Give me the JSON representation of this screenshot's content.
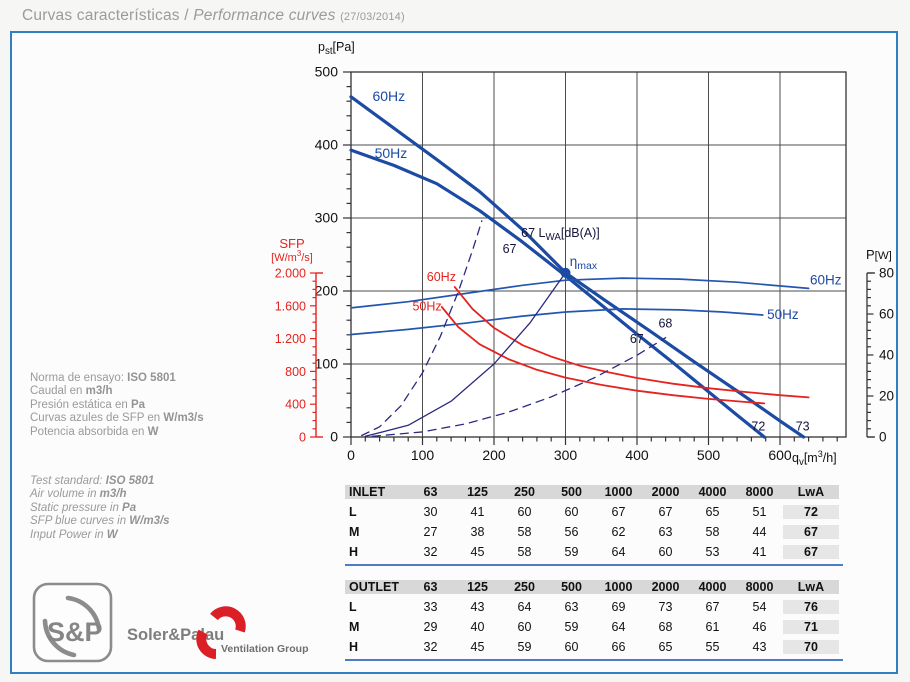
{
  "page": {
    "title_es": "Curvas características /",
    "title_en": "Performance curves",
    "title_date": "(27/03/2014)"
  },
  "info": {
    "spanish": [
      {
        "pre": "Norma de ensayo: ",
        "bold": "ISO 5801"
      },
      {
        "pre": "Caudal en ",
        "bold": "m3/h"
      },
      {
        "pre": "Presión estática en ",
        "bold": "Pa"
      },
      {
        "pre": "Curvas azules de SFP en ",
        "bold": "W/m3/s"
      },
      {
        "pre": "Potencia absorbida en ",
        "bold": "W"
      }
    ],
    "english": [
      {
        "pre": "Test standard: ",
        "bold": "ISO 5801"
      },
      {
        "pre": "Air volume in ",
        "bold": "m3/h"
      },
      {
        "pre": "Static pressure in ",
        "bold": "Pa"
      },
      {
        "pre": "SFP blue curves in ",
        "bold": "W/m3/s"
      },
      {
        "pre": "Input Power in ",
        "bold": "W"
      }
    ]
  },
  "chart_data": {
    "type": "line",
    "title": "Performance curves",
    "grid": true,
    "x_axis": {
      "label": "qv[m³/h]",
      "ticks": [
        "0",
        "100",
        "200",
        "300",
        "400",
        "500",
        "600"
      ],
      "tick_values": [
        0,
        100,
        200,
        300,
        400,
        500,
        600
      ],
      "minor_step": 20,
      "range": [
        0,
        692
      ]
    },
    "y_axis_left": {
      "label": "pst[Pa]",
      "ticks": [
        "500",
        "400",
        "300",
        "200",
        "100",
        "0"
      ],
      "tick_values": [
        500,
        400,
        300,
        200,
        100,
        0
      ],
      "minor_step": 20,
      "range": [
        0,
        500
      ]
    },
    "y_axis_right": {
      "label": "P[W]",
      "ticks": [
        "80",
        "60",
        "40",
        "20",
        "0"
      ],
      "tick_values": [
        80,
        60,
        40,
        20,
        0
      ],
      "minor_step": 4,
      "range": [
        0,
        80
      ]
    },
    "y_axis_sfp": {
      "label": "SFP [W/m³/s]",
      "ticks": [
        "2.000",
        "1.600",
        "1.200",
        "800",
        "400",
        "0"
      ],
      "tick_values": [
        2000,
        1600,
        1200,
        800,
        400,
        0
      ],
      "minor_step": 100,
      "range": [
        0,
        2000
      ]
    },
    "series": [
      {
        "name": "pressure-60Hz",
        "axis": "pa",
        "color": "#1c4ba3",
        "width": 3.2,
        "dash": null,
        "points": [
          [
            0,
            466
          ],
          [
            60,
            423
          ],
          [
            120,
            380
          ],
          [
            180,
            336
          ],
          [
            240,
            284
          ],
          [
            300,
            225
          ],
          [
            360,
            184
          ],
          [
            420,
            144
          ],
          [
            480,
            103
          ],
          [
            540,
            63
          ],
          [
            600,
            22
          ],
          [
            633,
            0
          ]
        ]
      },
      {
        "name": "pressure-50Hz",
        "axis": "pa",
        "color": "#1c4ba3",
        "width": 3.2,
        "dash": null,
        "points": [
          [
            0,
            393
          ],
          [
            60,
            372
          ],
          [
            120,
            347
          ],
          [
            180,
            310
          ],
          [
            240,
            267
          ],
          [
            300,
            221
          ],
          [
            350,
            181
          ],
          [
            400,
            141
          ],
          [
            450,
            102
          ],
          [
            500,
            62
          ],
          [
            540,
            30
          ],
          [
            578,
            0
          ]
        ]
      },
      {
        "name": "power-60Hz",
        "axis": "w",
        "color": "#2456b0",
        "width": 1.7,
        "dash": null,
        "points": [
          [
            0,
            63
          ],
          [
            80,
            66
          ],
          [
            160,
            70
          ],
          [
            240,
            74
          ],
          [
            300,
            76.5
          ],
          [
            380,
            77.5
          ],
          [
            460,
            77
          ],
          [
            540,
            75.5
          ],
          [
            640,
            72.5
          ]
        ]
      },
      {
        "name": "power-50Hz",
        "axis": "w",
        "color": "#2456b0",
        "width": 1.7,
        "dash": null,
        "points": [
          [
            0,
            50
          ],
          [
            80,
            52.5
          ],
          [
            160,
            55.5
          ],
          [
            240,
            59
          ],
          [
            300,
            61
          ],
          [
            380,
            62.5
          ],
          [
            460,
            62
          ],
          [
            520,
            61
          ],
          [
            576,
            59.5
          ]
        ]
      },
      {
        "name": "sfp-60Hz",
        "axis": "sfp",
        "color": "#e5231f",
        "width": 1.8,
        "dash": null,
        "points": [
          [
            145,
            1830
          ],
          [
            170,
            1560
          ],
          [
            200,
            1330
          ],
          [
            240,
            1120
          ],
          [
            280,
            980
          ],
          [
            320,
            870
          ],
          [
            360,
            790
          ],
          [
            400,
            720
          ],
          [
            450,
            650
          ],
          [
            500,
            595
          ],
          [
            550,
            550
          ],
          [
            600,
            510
          ],
          [
            640,
            483
          ]
        ]
      },
      {
        "name": "sfp-50Hz",
        "axis": "sfp",
        "color": "#e5231f",
        "width": 1.8,
        "dash": null,
        "points": [
          [
            127,
            1585
          ],
          [
            150,
            1340
          ],
          [
            180,
            1130
          ],
          [
            220,
            950
          ],
          [
            260,
            820
          ],
          [
            300,
            725
          ],
          [
            350,
            635
          ],
          [
            400,
            565
          ],
          [
            450,
            510
          ],
          [
            500,
            465
          ],
          [
            550,
            428
          ],
          [
            578,
            410
          ]
        ]
      },
      {
        "name": "working-range-min",
        "axis": "pa",
        "color": "#2b2b80",
        "width": 1.3,
        "dash": "8,6",
        "points": [
          [
            15,
            2
          ],
          [
            40,
            14
          ],
          [
            70,
            43
          ],
          [
            100,
            88
          ],
          [
            125,
            138
          ],
          [
            150,
            199
          ],
          [
            170,
            256
          ],
          [
            183,
            296
          ]
        ]
      },
      {
        "name": "working-range-max",
        "axis": "pa",
        "color": "#2b2b80",
        "width": 1.3,
        "dash": "8,6",
        "points": [
          [
            30,
            1
          ],
          [
            100,
            7
          ],
          [
            160,
            18
          ],
          [
            220,
            34
          ],
          [
            280,
            55
          ],
          [
            340,
            81
          ],
          [
            400,
            112
          ],
          [
            440,
            136
          ]
        ]
      },
      {
        "name": "efficiency-curve",
        "axis": "pa",
        "color": "#2b2b80",
        "width": 1.3,
        "dash": null,
        "points": [
          [
            20,
            1
          ],
          [
            80,
            16
          ],
          [
            140,
            49
          ],
          [
            200,
            100
          ],
          [
            250,
            156
          ],
          [
            300,
            225
          ]
        ]
      }
    ],
    "marker": {
      "name": "eta-max-point",
      "axis": "pa",
      "x": 300,
      "y": 225,
      "color": "#1c4ba3"
    },
    "annotations": [
      {
        "name": "label-60hz-pressure",
        "axis": "pa",
        "x": 30,
        "y": 460,
        "color": "#1c4ba3",
        "size": 14,
        "parts": [
          {
            "t": "60Hz"
          }
        ]
      },
      {
        "name": "label-50hz-pressure",
        "axis": "pa",
        "x": 33,
        "y": 382,
        "color": "#1c4ba3",
        "size": 14,
        "parts": [
          {
            "t": "50Hz"
          }
        ]
      },
      {
        "name": "label-lwa-title",
        "axis": "pa",
        "x": 238,
        "y": 274,
        "color": "#14143c",
        "size": 12.5,
        "parts": [
          {
            "t": "67 L"
          },
          {
            "t": "WA",
            "sub": true
          },
          {
            "t": "[dB(A)]"
          }
        ]
      },
      {
        "name": "label-lwa-67a",
        "axis": "pa",
        "x": 212,
        "y": 252,
        "color": "#14143c",
        "size": 12.5,
        "parts": [
          {
            "t": "67"
          }
        ]
      },
      {
        "name": "label-eta-max",
        "axis": "pa",
        "x": 306,
        "y": 234,
        "color": "#1c4ba3",
        "size": 13.5,
        "parts": [
          {
            "t": "η"
          },
          {
            "t": "max",
            "sub": true
          }
        ]
      },
      {
        "name": "label-lwa-68",
        "axis": "pa",
        "x": 430,
        "y": 150,
        "color": "#14143c",
        "size": 12.5,
        "parts": [
          {
            "t": "68"
          }
        ]
      },
      {
        "name": "label-lwa-67b",
        "axis": "pa",
        "x": 390,
        "y": 129,
        "color": "#14143c",
        "size": 12.5,
        "parts": [
          {
            "t": "67"
          }
        ]
      },
      {
        "name": "label-lwa-72",
        "axis": "pa",
        "x": 560,
        "y": 9,
        "color": "#14143c",
        "size": 12.5,
        "parts": [
          {
            "t": "72"
          }
        ]
      },
      {
        "name": "label-lwa-73",
        "axis": "pa",
        "x": 622,
        "y": 9,
        "color": "#14143c",
        "size": 12.5,
        "parts": [
          {
            "t": "73"
          }
        ]
      },
      {
        "name": "label-60hz-power",
        "axis": "w",
        "x": 642,
        "y": 74.5,
        "color": "#1c4ba3",
        "size": 13.5,
        "parts": [
          {
            "t": "60Hz"
          }
        ]
      },
      {
        "name": "label-50hz-power",
        "axis": "w",
        "x": 582,
        "y": 57.5,
        "color": "#1c4ba3",
        "size": 13.5,
        "parts": [
          {
            "t": "50Hz"
          }
        ]
      },
      {
        "name": "label-60hz-sfp",
        "axis": "sfp",
        "x": 106,
        "y": 1900,
        "color": "#e5231f",
        "size": 12.5,
        "parts": [
          {
            "t": "60Hz"
          }
        ]
      },
      {
        "name": "label-50hz-sfp",
        "axis": "sfp",
        "x": 86,
        "y": 1545,
        "color": "#e5231f",
        "size": 12.5,
        "parts": [
          {
            "t": "50Hz"
          }
        ]
      }
    ],
    "axis_labels": [
      {
        "name": "pst-axis-label",
        "x": 318,
        "y": 51,
        "color": "#111111",
        "size": 12.5,
        "anchor": "start",
        "parts": [
          {
            "t": "p"
          },
          {
            "t": "st",
            "sub": true
          },
          {
            "t": "[Pa]"
          }
        ]
      },
      {
        "name": "qv-axis-label",
        "x": 792,
        "y": 462,
        "color": "#111111",
        "size": 12.5,
        "anchor": "start",
        "parts": [
          {
            "t": "q"
          },
          {
            "t": "v",
            "sub": true
          },
          {
            "t": "[m"
          },
          {
            "t": "3",
            "sup": true
          },
          {
            "t": "/h]"
          }
        ]
      },
      {
        "name": "p-axis-label",
        "x": 866,
        "y": 259,
        "color": "#111111",
        "size": 13,
        "anchor": "start",
        "parts": [
          {
            "t": "P"
          },
          {
            "t": "[W]",
            "small": true
          }
        ]
      },
      {
        "name": "sfp-axis-label-1",
        "x": 292,
        "y": 248,
        "color": "#e5231f",
        "size": 13,
        "anchor": "middle",
        "parts": [
          {
            "t": "SFP"
          }
        ]
      },
      {
        "name": "sfp-axis-label-2",
        "x": 292,
        "y": 261,
        "color": "#e5231f",
        "size": 11,
        "anchor": "middle",
        "parts": [
          {
            "t": "[W/m"
          },
          {
            "t": "3",
            "sup": true
          },
          {
            "t": "/s]"
          }
        ]
      }
    ]
  },
  "tables": [
    {
      "title": "INLET",
      "bands": [
        "63",
        "125",
        "250",
        "500",
        "1000",
        "2000",
        "4000",
        "8000"
      ],
      "lwa_header": "LwA",
      "rows": [
        {
          "label": "L",
          "values": [
            "30",
            "41",
            "60",
            "60",
            "67",
            "67",
            "65",
            "51"
          ],
          "lwa": "72"
        },
        {
          "label": "M",
          "values": [
            "27",
            "38",
            "58",
            "56",
            "62",
            "63",
            "58",
            "44"
          ],
          "lwa": "67"
        },
        {
          "label": "H",
          "values": [
            "32",
            "45",
            "58",
            "59",
            "64",
            "60",
            "53",
            "41"
          ],
          "lwa": "67"
        }
      ]
    },
    {
      "title": "OUTLET",
      "bands": [
        "63",
        "125",
        "250",
        "500",
        "1000",
        "2000",
        "4000",
        "8000"
      ],
      "lwa_header": "LwA",
      "rows": [
        {
          "label": "L",
          "values": [
            "33",
            "43",
            "64",
            "63",
            "69",
            "73",
            "67",
            "54"
          ],
          "lwa": "76"
        },
        {
          "label": "M",
          "values": [
            "29",
            "40",
            "60",
            "59",
            "64",
            "68",
            "61",
            "46"
          ],
          "lwa": "71"
        },
        {
          "label": "H",
          "values": [
            "32",
            "45",
            "59",
            "60",
            "66",
            "65",
            "55",
            "43"
          ],
          "lwa": "70"
        }
      ]
    }
  ],
  "logo": {
    "monogram": "S&P",
    "brand": "Soler&Palau",
    "group": "Ventilation Group"
  },
  "colors": {
    "box_border": "#2f80c0",
    "table_line": "#4a7cc7",
    "curve_blue": "#1c4ba3",
    "curve_red": "#e5231f",
    "curve_navy": "#2b2b80",
    "grid": "#4d4d4d",
    "title_gray": "#9b9b9b"
  }
}
